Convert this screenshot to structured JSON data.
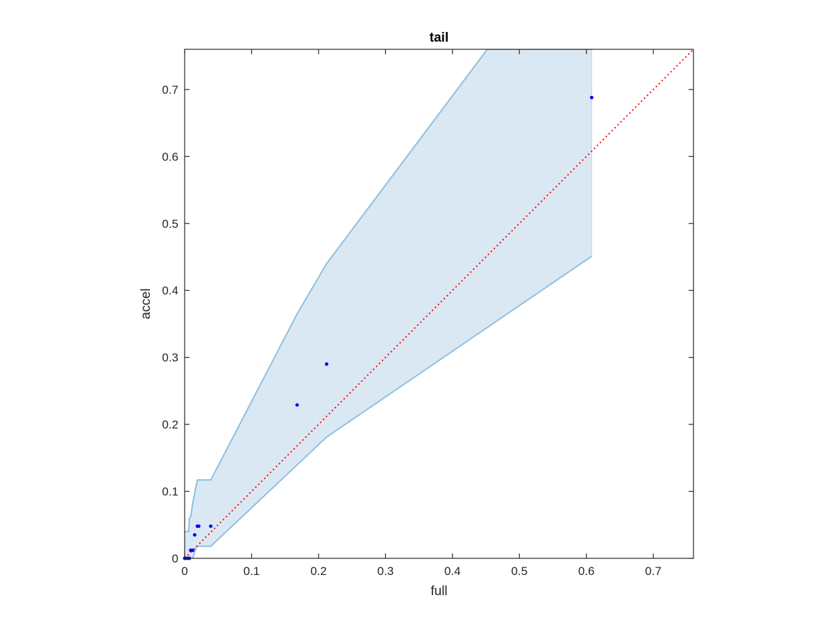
{
  "chart_data": {
    "type": "scatter",
    "title": "tail",
    "xlabel": "full",
    "ylabel": "accel",
    "xlim": [
      0,
      0.76
    ],
    "ylim": [
      0,
      0.76
    ],
    "xticks": [
      "0",
      "0.1",
      "0.2",
      "0.3",
      "0.4",
      "0.5",
      "0.6",
      "0.7"
    ],
    "yticks": [
      "0",
      "0.1",
      "0.2",
      "0.3",
      "0.4",
      "0.5",
      "0.6",
      "0.7"
    ],
    "grid": false,
    "box": true,
    "series": [
      {
        "kind": "points",
        "color": "#0000ff",
        "points": [
          [
            0.0,
            0.0
          ],
          [
            0.002,
            0.0
          ],
          [
            0.005,
            0.0
          ],
          [
            0.007,
            0.0
          ],
          [
            0.009,
            0.012
          ],
          [
            0.012,
            0.012
          ],
          [
            0.015,
            0.035
          ],
          [
            0.019,
            0.048
          ],
          [
            0.021,
            0.048
          ],
          [
            0.039,
            0.048
          ],
          [
            0.168,
            0.229
          ],
          [
            0.212,
            0.29
          ],
          [
            0.608,
            0.688
          ]
        ]
      },
      {
        "kind": "reference-line",
        "color": "#ff0000",
        "style": "dotted",
        "points": [
          [
            0,
            0
          ],
          [
            0.76,
            0.76
          ]
        ]
      },
      {
        "kind": "confidence-band",
        "fill": "#dae8f3",
        "stroke": "#8dbfe0",
        "upper": [
          [
            0.0,
            0.04
          ],
          [
            0.006,
            0.04
          ],
          [
            0.007,
            0.06
          ],
          [
            0.009,
            0.062
          ],
          [
            0.012,
            0.082
          ],
          [
            0.016,
            0.103
          ],
          [
            0.019,
            0.117
          ],
          [
            0.039,
            0.117
          ],
          [
            0.168,
            0.365
          ],
          [
            0.212,
            0.44
          ],
          [
            0.452,
            0.76
          ],
          [
            0.608,
            0.76
          ]
        ],
        "lower": [
          [
            0.0,
            0.0
          ],
          [
            0.012,
            0.0
          ],
          [
            0.018,
            0.018
          ],
          [
            0.039,
            0.018
          ],
          [
            0.212,
            0.181
          ],
          [
            0.608,
            0.451
          ]
        ]
      }
    ]
  }
}
